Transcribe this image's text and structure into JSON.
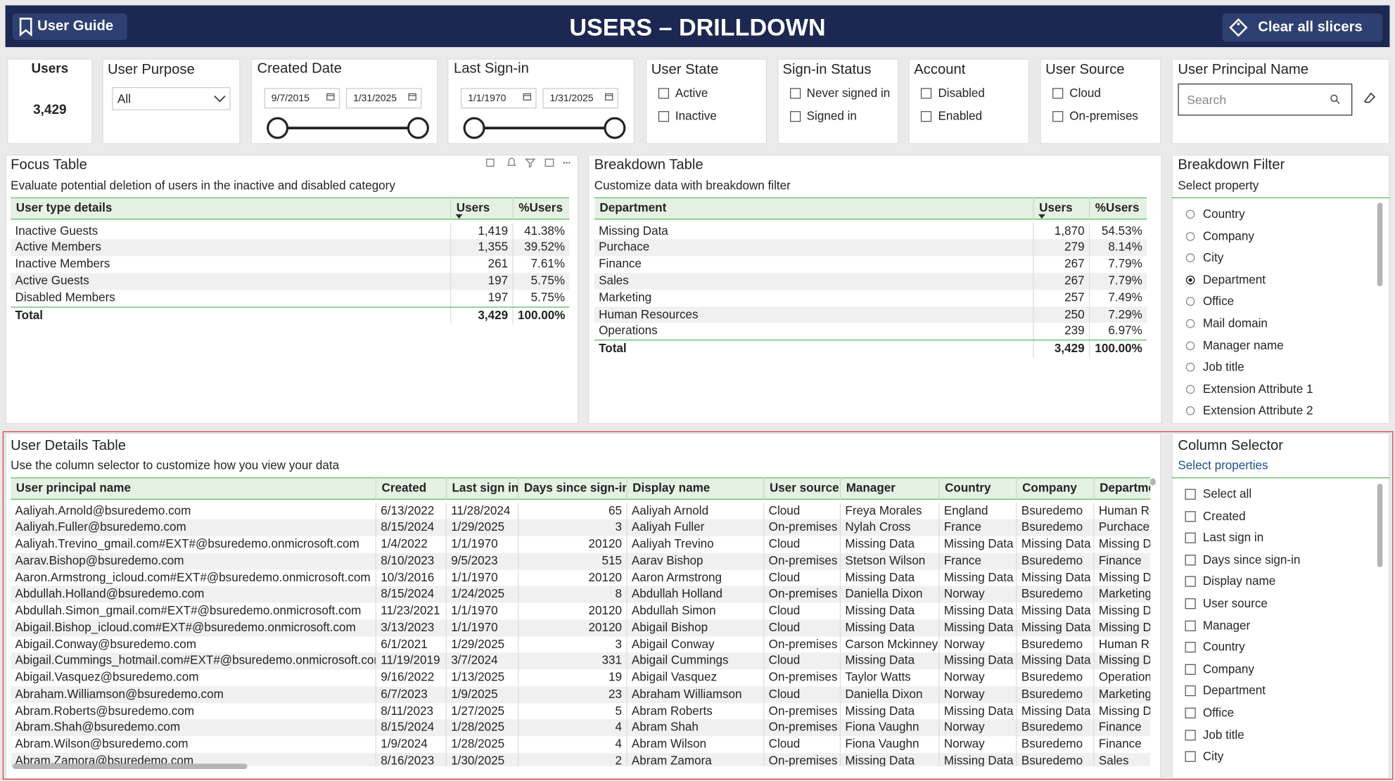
{
  "header": {
    "user_guide": "User Guide",
    "title": "USERS – DRILLDOWN",
    "clear": "Clear all slicers"
  },
  "users_card": {
    "label": "Users",
    "value": "3,429"
  },
  "user_purpose": {
    "title": "User Purpose",
    "value": "All"
  },
  "created_date": {
    "title": "Created Date",
    "from": "9/7/2015",
    "to": "1/31/2025"
  },
  "last_signin": {
    "title": "Last Sign-in",
    "from": "1/1/1970",
    "to": "1/31/2025"
  },
  "check_slicers": [
    {
      "title": "User State",
      "options": [
        "Active",
        "Inactive"
      ]
    },
    {
      "title": "Sign-in Status",
      "options": [
        "Never signed in",
        "Signed in"
      ]
    },
    {
      "title": "Account",
      "options": [
        "Disabled",
        "Enabled"
      ]
    },
    {
      "title": "User Source",
      "options": [
        "Cloud",
        "On-premises"
      ]
    }
  ],
  "upn": {
    "title": "User Principal Name",
    "placeholder": "Search"
  },
  "focus_table": {
    "title": "Focus Table",
    "subtitle": "Evaluate potential deletion of users in the inactive and disabled category",
    "columns": [
      "User type details",
      "Users",
      "%Users"
    ],
    "rows": [
      [
        "Inactive Guests",
        "1,419",
        "41.38%"
      ],
      [
        "Active Members",
        "1,355",
        "39.52%"
      ],
      [
        "Inactive Members",
        "261",
        "7.61%"
      ],
      [
        "Active Guests",
        "197",
        "5.75%"
      ],
      [
        "Disabled Members",
        "197",
        "5.75%"
      ]
    ],
    "total": [
      "Total",
      "3,429",
      "100.00%"
    ]
  },
  "breakdown_table": {
    "title": "Breakdown Table",
    "subtitle": "Customize data with breakdown filter",
    "columns": [
      "Department",
      "Users",
      "%Users"
    ],
    "rows": [
      [
        "Missing Data",
        "1,870",
        "54.53%"
      ],
      [
        "Purchace",
        "279",
        "8.14%"
      ],
      [
        "Finance",
        "267",
        "7.79%"
      ],
      [
        "Sales",
        "267",
        "7.79%"
      ],
      [
        "Marketing",
        "257",
        "7.49%"
      ],
      [
        "Human Resources",
        "250",
        "7.29%"
      ],
      [
        "Operations",
        "239",
        "6.97%"
      ]
    ],
    "total": [
      "Total",
      "3,429",
      "100.00%"
    ]
  },
  "breakdown_filter": {
    "title": "Breakdown Filter",
    "subtitle": "Select property",
    "selected": 3,
    "options": [
      "Country",
      "Company",
      "City",
      "Department",
      "Office",
      "Mail domain",
      "Manager name",
      "Job title",
      "Extension Attribute 1",
      "Extension Attribute 2"
    ]
  },
  "details_table": {
    "title": "User Details Table",
    "subtitle": "Use the column selector to customize how you view your data",
    "columns": [
      "User principal name",
      "Created",
      "Last sign in",
      "Days since sign-in",
      "Display name",
      "User source",
      "Manager",
      "Country",
      "Company",
      "Department"
    ],
    "rows": [
      [
        "Aaliyah.Arnold@bsuredemo.com",
        "6/13/2022",
        "11/28/2024",
        "65",
        "Aaliyah Arnold",
        "Cloud",
        "Freya Morales",
        "England",
        "Bsuredemo",
        "Human Resources"
      ],
      [
        "Aaliyah.Fuller@bsuredemo.com",
        "8/15/2024",
        "1/29/2025",
        "3",
        "Aaliyah Fuller",
        "On-premises",
        "Nylah Cross",
        "France",
        "Bsuredemo",
        "Purchace"
      ],
      [
        "Aaliyah.Trevino_gmail.com#EXT#@bsuredemo.onmicrosoft.com",
        "1/4/2022",
        "1/1/1970",
        "20120",
        "Aaliyah Trevino",
        "Cloud",
        "Missing Data",
        "Missing Data",
        "Missing Data",
        "Missing Data"
      ],
      [
        "Aarav.Bishop@bsuredemo.com",
        "8/10/2023",
        "9/5/2023",
        "515",
        "Aarav Bishop",
        "On-premises",
        "Stetson Wilson",
        "France",
        "Bsuredemo",
        "Finance"
      ],
      [
        "Aaron.Armstrong_icloud.com#EXT#@bsuredemo.onmicrosoft.com",
        "10/3/2016",
        "1/1/1970",
        "20120",
        "Aaron Armstrong",
        "Cloud",
        "Missing Data",
        "Missing Data",
        "Missing Data",
        "Missing Data"
      ],
      [
        "Abdullah.Holland@bsuredemo.com",
        "8/15/2024",
        "1/24/2025",
        "8",
        "Abdullah Holland",
        "On-premises",
        "Daniella Dixon",
        "Norway",
        "Bsuredemo",
        "Marketing"
      ],
      [
        "Abdullah.Simon_gmail.com#EXT#@bsuredemo.onmicrosoft.com",
        "11/23/2021",
        "1/1/1970",
        "20120",
        "Abdullah Simon",
        "Cloud",
        "Missing Data",
        "Missing Data",
        "Missing Data",
        "Missing Data"
      ],
      [
        "Abigail.Bishop_icloud.com#EXT#@bsuredemo.onmicrosoft.com",
        "3/13/2023",
        "1/1/1970",
        "20120",
        "Abigail Bishop",
        "Cloud",
        "Missing Data",
        "Missing Data",
        "Missing Data",
        "Missing Data"
      ],
      [
        "Abigail.Conway@bsuredemo.com",
        "6/1/2021",
        "1/29/2025",
        "3",
        "Abigail Conway",
        "On-premises",
        "Carson Mckinney",
        "Norway",
        "Bsuredemo",
        "Human Resources"
      ],
      [
        "Abigail.Cummings_hotmail.com#EXT#@bsuredemo.onmicrosoft.com",
        "11/19/2019",
        "3/7/2024",
        "331",
        "Abigail Cummings",
        "Cloud",
        "Missing Data",
        "Missing Data",
        "Missing Data",
        "Missing Data"
      ],
      [
        "Abigail.Vasquez@bsuredemo.com",
        "9/16/2022",
        "1/13/2025",
        "19",
        "Abigail Vasquez",
        "On-premises",
        "Taylor Watts",
        "Norway",
        "Bsuredemo",
        "Operations"
      ],
      [
        "Abraham.Williamson@bsuredemo.com",
        "6/7/2023",
        "1/9/2025",
        "23",
        "Abraham Williamson",
        "Cloud",
        "Daniella Dixon",
        "Norway",
        "Bsuredemo",
        "Marketing"
      ],
      [
        "Abram.Roberts@bsuredemo.com",
        "8/11/2023",
        "1/27/2025",
        "5",
        "Abram Roberts",
        "On-premises",
        "Missing Data",
        "Missing Data",
        "Missing Data",
        "Missing Data"
      ],
      [
        "Abram.Shah@bsuredemo.com",
        "8/15/2024",
        "1/28/2025",
        "4",
        "Abram Shah",
        "On-premises",
        "Fiona Vaughn",
        "Norway",
        "Bsuredemo",
        "Finance"
      ],
      [
        "Abram.Wilson@bsuredemo.com",
        "1/9/2024",
        "1/28/2025",
        "4",
        "Abram Wilson",
        "Cloud",
        "Fiona Vaughn",
        "Norway",
        "Bsuredemo",
        "Finance"
      ],
      [
        "Abram.Zamora@bsuredemo.com",
        "8/16/2023",
        "1/30/2025",
        "2",
        "Abram Zamora",
        "On-premises",
        "Missing Data",
        "Missing Data",
        "Bsuredemo",
        "Sales"
      ]
    ]
  },
  "column_selector": {
    "title": "Column Selector",
    "subtitle": "Select properties",
    "options": [
      "Select all",
      "Created",
      "Last sign in",
      "Days since sign-in",
      "Display name",
      "User source",
      "Manager",
      "Country",
      "Company",
      "Department",
      "Office",
      "Job title",
      "City"
    ]
  }
}
